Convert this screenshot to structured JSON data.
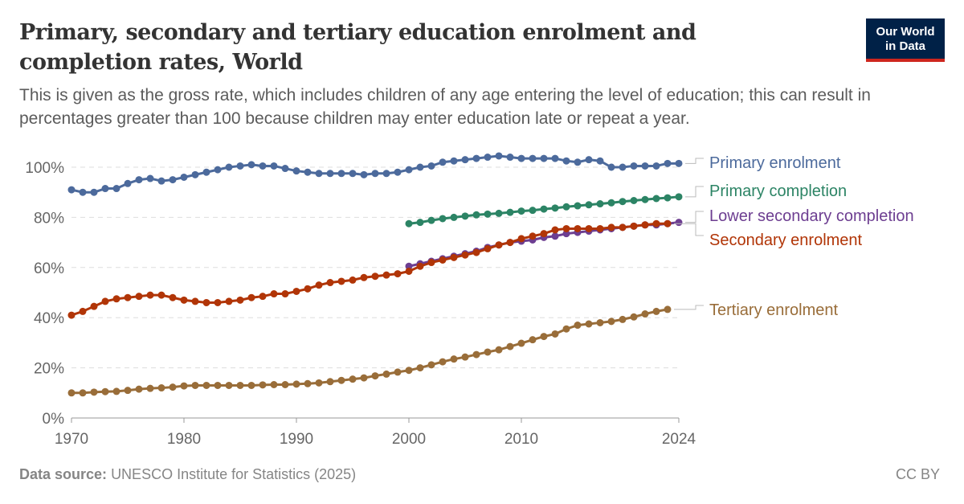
{
  "title": "Primary, secondary and tertiary education enrolment and completion rates, World",
  "subtitle": "This is given as the gross rate, which includes children of any age entering the level of education; this can result in percentages greater than 100 because children may enter education late or repeat a year.",
  "logo": {
    "line1": "Our World",
    "line2": "in Data"
  },
  "footer": {
    "source_label": "Data source:",
    "source": "UNESCO Institute for Statistics (2025)",
    "license": "CC BY"
  },
  "chart_data": {
    "type": "line",
    "xlim": [
      1970,
      2024
    ],
    "ylim": [
      0,
      100
    ],
    "x_ticks": [
      "1970",
      "1980",
      "1990",
      "2000",
      "2010",
      "2024"
    ],
    "y_ticks": [
      "0%",
      "20%",
      "40%",
      "60%",
      "80%",
      "100%"
    ],
    "grid": "horizontal dashed",
    "legend": "right, labels at line ends",
    "series": [
      {
        "name": "Primary enrolment",
        "color": "#4C6A9C",
        "start": 1970,
        "values": [
          91,
          90,
          90,
          91.5,
          91.5,
          93.5,
          95,
          95.5,
          94.5,
          95,
          96,
          97,
          98,
          99,
          100,
          100.5,
          101,
          100.5,
          100.5,
          99.5,
          98.5,
          98,
          97.5,
          97.5,
          97.5,
          97.5,
          97,
          97.5,
          97.5,
          98,
          99,
          100,
          100.5,
          102,
          102.5,
          103,
          103.5,
          104,
          104.5,
          104,
          103.5,
          103.5,
          103.5,
          103.5,
          102.5,
          102,
          103,
          102.5,
          100,
          100,
          100.5,
          100.5,
          100.5,
          101.5,
          101.5
        ]
      },
      {
        "name": "Primary completion",
        "color": "#2C8465",
        "start": 2000,
        "values": [
          77.5,
          78,
          78.8,
          79.5,
          80,
          80.5,
          81,
          81.3,
          81.6,
          82,
          82.5,
          82.8,
          83.3,
          83.7,
          84.2,
          84.6,
          85,
          85.4,
          85.8,
          86.3,
          86.7,
          87.1,
          87.5,
          87.8,
          88.2
        ]
      },
      {
        "name": "Lower secondary completion",
        "color": "#6D3E91",
        "start": 2000,
        "values": [
          60.5,
          61.5,
          62.5,
          63.5,
          64.5,
          65.5,
          66.5,
          68,
          69,
          70,
          70.5,
          71,
          72,
          72.5,
          73.5,
          74,
          74.5,
          75,
          75.5,
          76,
          76.5,
          77,
          77,
          77.5,
          78
        ]
      },
      {
        "name": "Secondary enrolment",
        "color": "#B13507",
        "start": 1970,
        "values": [
          41,
          42.5,
          44.5,
          46.5,
          47.5,
          48,
          48.5,
          49,
          49,
          48,
          47,
          46.5,
          46,
          46,
          46.5,
          47,
          48,
          48.5,
          49.5,
          49.5,
          50.5,
          51.5,
          53,
          54,
          54.5,
          55,
          56,
          56.5,
          57,
          57.5,
          58.5,
          60.5,
          62,
          63,
          64,
          65,
          66,
          67.5,
          69,
          70,
          71.5,
          72.5,
          73.5,
          75,
          75.5,
          75.5,
          75.5,
          75.5,
          76,
          76,
          76.5,
          77,
          77.5,
          77.5
        ]
      },
      {
        "name": "Tertiary enrolment",
        "color": "#996D39",
        "start": 1970,
        "values": [
          10,
          10,
          10.3,
          10.5,
          10.6,
          11,
          11.5,
          11.8,
          12,
          12.3,
          12.8,
          13,
          13,
          13,
          13,
          13,
          13,
          13.2,
          13.3,
          13.3,
          13.5,
          13.7,
          14,
          14.5,
          15,
          15.5,
          16,
          16.8,
          17.5,
          18.3,
          19,
          20,
          21.2,
          22.4,
          23.5,
          24.3,
          25.3,
          26.3,
          27.2,
          28.5,
          29.8,
          31.2,
          32.5,
          33.5,
          35.5,
          37,
          37.5,
          38,
          38.5,
          39.3,
          40.3,
          41.5,
          42.5,
          43.3
        ]
      }
    ]
  }
}
